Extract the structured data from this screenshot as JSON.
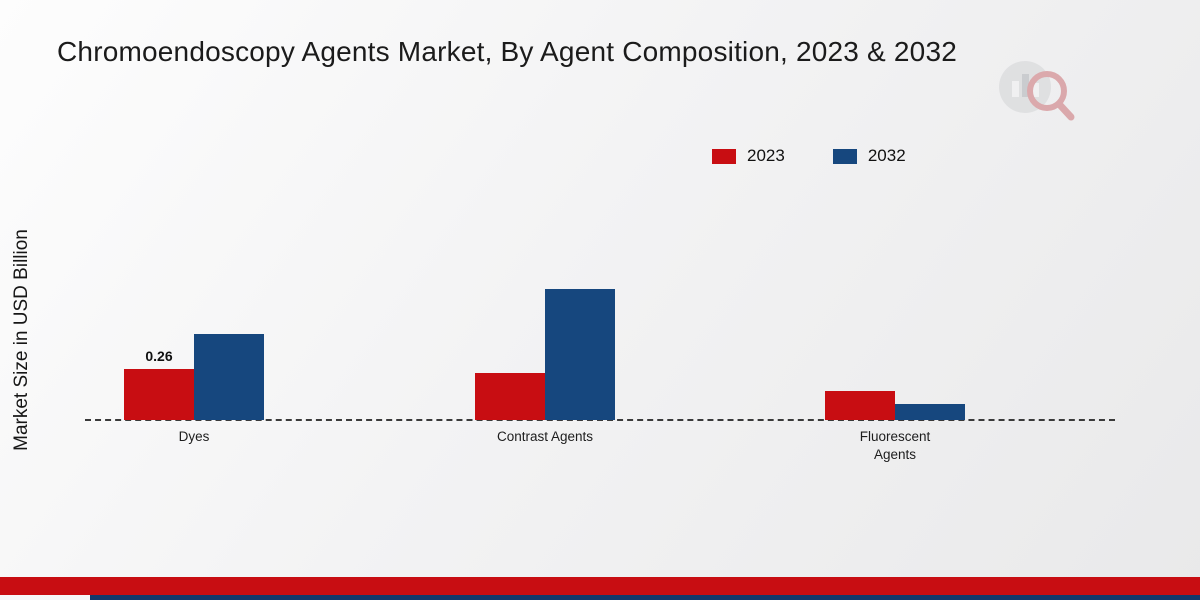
{
  "title": "Chromoendoscopy Agents Market, By Agent Composition, 2023 & 2032",
  "y_axis_label": "Market Size in USD Billion",
  "legend": [
    {
      "label": "2023",
      "color": "#c80d12"
    },
    {
      "label": "2032",
      "color": "#16477e"
    }
  ],
  "colors": {
    "series_2023": "#c80d12",
    "series_2032": "#16477e",
    "footer_red": "#c80d12",
    "footer_blue": "#12386b"
  },
  "chart_data": {
    "type": "bar",
    "categories": [
      "Dyes",
      "Contrast Agents",
      "Fluorescent Agents"
    ],
    "series": [
      {
        "name": "2023",
        "color": "#c80d12",
        "values": [
          0.26,
          0.24,
          0.15
        ]
      },
      {
        "name": "2032",
        "color": "#16477e",
        "values": [
          0.44,
          0.67,
          0.08
        ]
      }
    ],
    "annotations": [
      {
        "series": "2023",
        "category": "Dyes",
        "text": "0.26"
      }
    ],
    "title": "Chromoendoscopy Agents Market, By Agent Composition, 2023 & 2032",
    "xlabel": "",
    "ylabel": "Market Size in USD Billion",
    "ylim": [
      0,
      0.8
    ],
    "grid": false,
    "legend_position": "top-right",
    "baseline_style": "dashed"
  }
}
